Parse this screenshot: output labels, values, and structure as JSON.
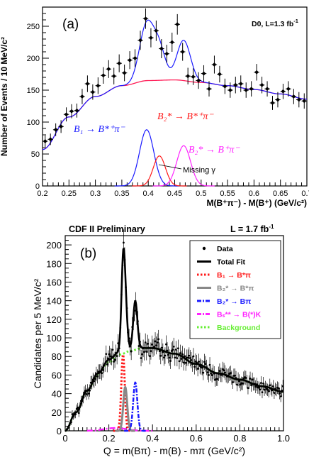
{
  "chart_data": [
    {
      "type": "scatter",
      "panel_label": "(a)",
      "experiment_label": "D0, L=1.3 fb",
      "experiment_label_sup": "-1",
      "xlabel": "M(B⁺π⁻) - M(B⁺)   (GeV/c²)",
      "ylabel": "Number of Events / 10 MeV/c²",
      "xlim": [
        0.2,
        0.7
      ],
      "ylim": [
        0,
        280
      ],
      "x_ticks": [
        "0.2",
        "0.25",
        "0.3",
        "0.35",
        "0.4",
        "0.45",
        "0.5",
        "0.55",
        "0.6",
        "0.65",
        "0.7"
      ],
      "y_ticks": [
        "0",
        "50",
        "100",
        "150",
        "200",
        "250"
      ],
      "grid": false,
      "data_points": {
        "x": [
          0.205,
          0.215,
          0.225,
          0.235,
          0.245,
          0.255,
          0.265,
          0.275,
          0.285,
          0.295,
          0.305,
          0.315,
          0.325,
          0.335,
          0.345,
          0.355,
          0.365,
          0.375,
          0.385,
          0.395,
          0.405,
          0.415,
          0.425,
          0.435,
          0.445,
          0.455,
          0.465,
          0.475,
          0.485,
          0.495,
          0.505,
          0.515,
          0.525,
          0.535,
          0.545,
          0.555,
          0.565,
          0.575,
          0.585,
          0.595,
          0.605,
          0.615,
          0.625,
          0.635,
          0.645,
          0.655,
          0.665,
          0.675,
          0.685,
          0.695
        ],
        "y": [
          70,
          73,
          88,
          93,
          112,
          117,
          118,
          140,
          160,
          147,
          157,
          173,
          183,
          172,
          192,
          177,
          197,
          200,
          228,
          262,
          232,
          243,
          215,
          207,
          225,
          253,
          210,
          172,
          171,
          165,
          176,
          152,
          190,
          175,
          156,
          150,
          158,
          160,
          150,
          152,
          178,
          158,
          152,
          130,
          135,
          148,
          152,
          140,
          135,
          133
        ],
        "err": [
          9,
          9,
          10,
          10,
          11,
          11,
          11,
          12,
          13,
          12,
          13,
          13,
          14,
          13,
          14,
          13,
          14,
          14,
          15,
          16,
          15,
          16,
          15,
          14,
          15,
          16,
          14,
          13,
          13,
          13,
          13,
          12,
          14,
          13,
          12,
          12,
          13,
          13,
          12,
          12,
          13,
          13,
          12,
          11,
          12,
          12,
          12,
          12,
          12,
          12
        ]
      },
      "series": [
        {
          "name": "B₁ → B*⁺π⁻",
          "color": "#1a1aff",
          "type": "gaussian",
          "mean": 0.397,
          "sigma": 0.0135,
          "amp": 88
        },
        {
          "name": "B₂* → B*⁺π⁻",
          "color": "#ff1a1a",
          "type": "gaussian",
          "mean": 0.421,
          "sigma": 0.0115,
          "amp": 47
        },
        {
          "name": "B₂* → B⁺π⁻",
          "color": "#ff22ff",
          "type": "gaussian",
          "mean": 0.467,
          "sigma": 0.013,
          "amp": 63
        },
        {
          "name": "Total fit",
          "color": "#1a1aff",
          "type": "total"
        },
        {
          "name": "Background",
          "color": "#ff1a55",
          "type": "background",
          "curve": {
            "x": [
              0.2,
              0.25,
              0.3,
              0.35,
              0.4,
              0.45,
              0.5,
              0.55,
              0.6,
              0.65,
              0.7
            ],
            "y": [
              57,
              108,
              140,
              157,
              165,
              166,
              162,
              157,
              151,
              144,
              136
            ]
          }
        }
      ],
      "annotations": {
        "b1": "B₁ → B*⁺π⁻",
        "b2a": "B₂* → B*⁺π⁻",
        "b2b": "B₂* → B⁺π⁻",
        "missing": "Missing γ"
      }
    },
    {
      "type": "line",
      "panel_label": "(b)",
      "title": "CDF II Preliminary",
      "lumi_label": "L = 1.7 fb",
      "lumi_sup": "-1",
      "xlabel": "Q = m(Bπ) - m(B) - mπ (GeV/c²)",
      "ylabel": "Candidates per 5 MeV/c²",
      "xlim": [
        0,
        1.0
      ],
      "ylim": [
        0,
        210
      ],
      "x_ticks": [
        "0",
        "0.2",
        "0.4",
        "0.6",
        "0.8",
        "1.0"
      ],
      "y_ticks": [
        "0",
        "20",
        "40",
        "60",
        "80",
        "100",
        "120",
        "140",
        "160",
        "180",
        "200"
      ],
      "grid": false,
      "legend_placement": "top-right",
      "legend": [
        {
          "label": "Data",
          "style": "dot",
          "color": "#000000"
        },
        {
          "label": "Total Fit",
          "style": "solid",
          "color": "#000000"
        },
        {
          "label": "B₁ → B*π",
          "style": "dotted",
          "color": "#ff1a1a"
        },
        {
          "label": "B₂* → B*π",
          "style": "solid",
          "color": "#888888"
        },
        {
          "label": "B₂* → Bπ",
          "style": "dashdot",
          "color": "#1a1aff"
        },
        {
          "label": "Bₛ** → B(*)K",
          "style": "dashdot",
          "color": "#ff22ff"
        },
        {
          "label": "Background",
          "style": "dotted",
          "color": "#66ee33"
        }
      ],
      "series": [
        {
          "name": "Background",
          "curve": {
            "x": [
              0,
              0.05,
              0.1,
              0.15,
              0.2,
              0.25,
              0.3,
              0.35,
              0.4,
              0.5,
              0.6,
              0.7,
              0.8,
              0.9,
              1.0
            ],
            "y": [
              0,
              20,
              43,
              61,
              74,
              82,
              86,
              89,
              89,
              83,
              72,
              62,
              55,
              48,
              42
            ]
          }
        },
        {
          "name": "B1",
          "mean": 0.265,
          "sigma": 0.008,
          "amp": 82
        },
        {
          "name": "B2* to B*pi",
          "mean": 0.275,
          "sigma": 0.009,
          "amp": 47
        },
        {
          "name": "B2* to Bpi",
          "mean": 0.321,
          "sigma": 0.0095,
          "amp": 52
        },
        {
          "name": "Bs**",
          "mean": 0.23,
          "sigma": 0.05,
          "amp": 3
        }
      ]
    }
  ]
}
